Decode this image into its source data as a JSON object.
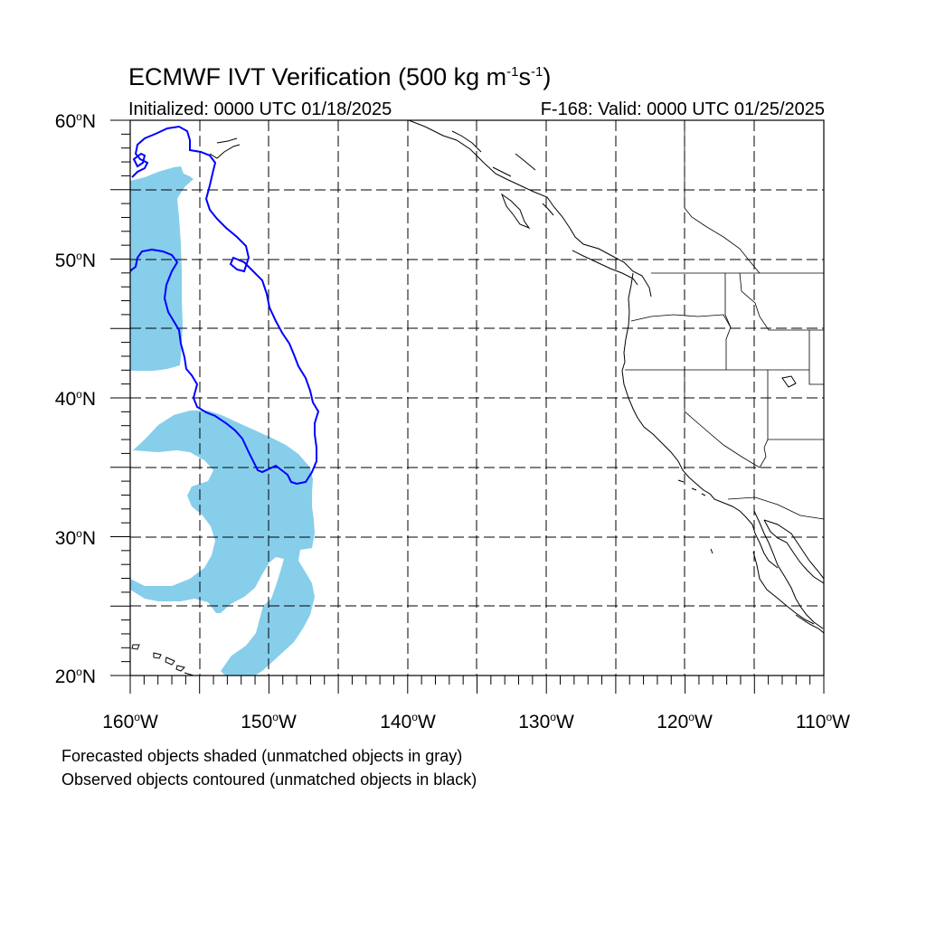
{
  "title": {
    "prefix": "ECMWF IVT Verification (500 kg m",
    "exp1": "-1",
    "mid": "s",
    "exp2": "-1",
    "suffix": ")"
  },
  "initialized": "Initialized: 0000 UTC 01/18/2025",
  "valid": "F-168: Valid: 0000 UTC 01/25/2025",
  "lat_labels": [
    {
      "num": "60",
      "deg": "o",
      "hem": "N"
    },
    {
      "num": "50",
      "deg": "o",
      "hem": "N"
    },
    {
      "num": "40",
      "deg": "o",
      "hem": "N"
    },
    {
      "num": "30",
      "deg": "o",
      "hem": "N"
    },
    {
      "num": "20",
      "deg": "o",
      "hem": "N"
    }
  ],
  "lon_labels": [
    {
      "num": "160",
      "deg": "o",
      "hem": "W"
    },
    {
      "num": "150",
      "deg": "o",
      "hem": "W"
    },
    {
      "num": "140",
      "deg": "o",
      "hem": "W"
    },
    {
      "num": "130",
      "deg": "o",
      "hem": "W"
    },
    {
      "num": "120",
      "deg": "o",
      "hem": "W"
    },
    {
      "num": "110",
      "deg": "o",
      "hem": "W"
    }
  ],
  "legend": {
    "line1": "Forecasted objects shaded (unmatched objects in gray)",
    "line2": "Observed objects contoured (unmatched objects in black)"
  },
  "colors": {
    "forecast_fill": "#87ceeb",
    "observed_contour": "#0000ff",
    "coastline": "#000000",
    "grid": "#000000"
  },
  "map_extent": {
    "lon": [
      -160,
      -110
    ],
    "lat": [
      20,
      60
    ],
    "grid_spacing_deg": 5
  }
}
